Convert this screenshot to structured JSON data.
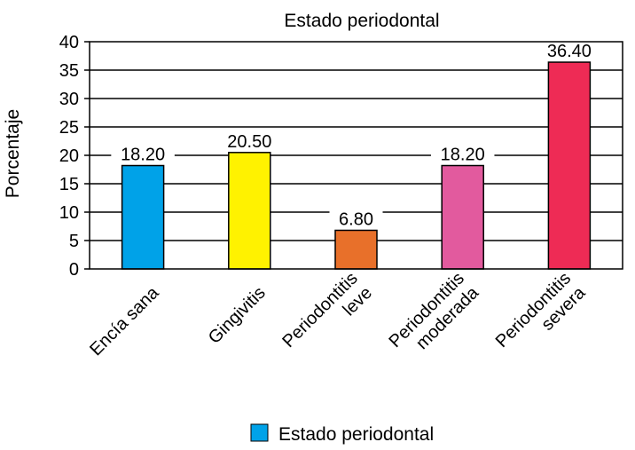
{
  "chart_data": {
    "type": "bar",
    "title": "Estado periodontal",
    "ylabel": "Porcentaje",
    "xlabel": "",
    "ylim": [
      0,
      40
    ],
    "yticks": [
      0,
      5,
      10,
      15,
      20,
      25,
      30,
      35,
      40
    ],
    "grid": true,
    "legend_position": "bottom",
    "categories": [
      [
        "Encía sana"
      ],
      [
        "Gingivitis"
      ],
      [
        "Periodontitis",
        "leve"
      ],
      [
        "Periodontitis",
        "moderada"
      ],
      [
        "Periodontitis",
        "severa"
      ]
    ],
    "series": [
      {
        "name": "Estado periodontal",
        "values": [
          18.2,
          20.5,
          6.8,
          18.2,
          36.4
        ],
        "value_labels": [
          "18.20",
          "20.50",
          "6.80",
          "18.20",
          "36.40"
        ],
        "colors": [
          "#00a2e8",
          "#fff200",
          "#e8702a",
          "#e25a9e",
          "#ee2b55"
        ],
        "legend_color": "#00a2e8"
      }
    ]
  }
}
